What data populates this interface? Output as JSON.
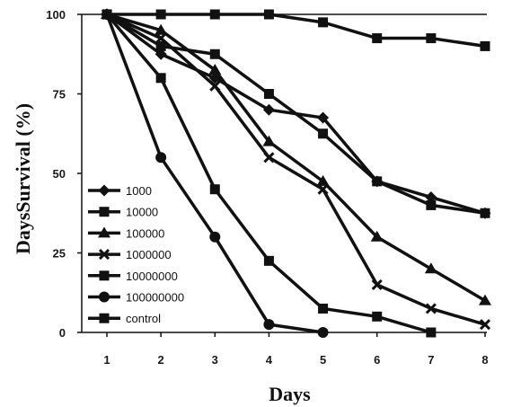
{
  "chart_data": {
    "type": "line",
    "xlabel": "Days",
    "ylabel": "DaysSurvival (%)",
    "x": [
      1,
      2,
      3,
      4,
      5,
      6,
      7,
      8
    ],
    "x_ticks": [
      "1",
      "2",
      "3",
      "4",
      "5",
      "6",
      "7",
      "8"
    ],
    "y_ticks": [
      "0",
      "25",
      "50",
      "75",
      "100"
    ],
    "xlim": [
      1,
      8
    ],
    "ylim": [
      0,
      100
    ],
    "grid": false,
    "legend_position": "bottom-left",
    "line_color": "#111111",
    "series": [
      {
        "name": "1000",
        "marker": "diamond",
        "values": [
          100,
          87.5,
          80,
          70,
          67.5,
          47.5,
          42.5,
          37.5
        ]
      },
      {
        "name": "10000",
        "marker": "square",
        "values": [
          100,
          90,
          87.5,
          75,
          62.5,
          47.5,
          40,
          37.5
        ]
      },
      {
        "name": "100000",
        "marker": "triangle",
        "values": [
          100,
          95,
          82.5,
          60,
          47.5,
          30,
          20,
          10
        ]
      },
      {
        "name": "1000000",
        "marker": "x",
        "values": [
          100,
          92.5,
          77.5,
          55,
          45,
          15,
          7.5,
          2.5
        ]
      },
      {
        "name": "10000000",
        "marker": "square",
        "values": [
          100,
          80,
          45,
          22.5,
          7.5,
          5,
          0,
          null
        ]
      },
      {
        "name": "100000000",
        "marker": "circle",
        "values": [
          100,
          55,
          30,
          2.5,
          0,
          null,
          null,
          null
        ]
      },
      {
        "name": "control",
        "marker": "square",
        "values": [
          100,
          100,
          100,
          100,
          97.5,
          92.5,
          92.5,
          90
        ]
      }
    ]
  }
}
